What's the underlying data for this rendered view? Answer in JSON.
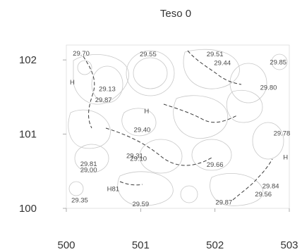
{
  "chart_data": {
    "type": "scatter",
    "title": "Teso 0",
    "xlabel": "",
    "ylabel": "",
    "xlim": [
      500,
      503
    ],
    "ylim": [
      100,
      102.2
    ],
    "x_ticks": [
      "500",
      "501",
      "502",
      "503"
    ],
    "y_ticks": [
      "100",
      "101",
      "102"
    ],
    "grid": false,
    "contours": true,
    "track_color": "#3a3a3a",
    "contour_color": "#c8c8c8",
    "labels": [
      {
        "text": "29.70",
        "x": 500.2,
        "y": 102.06
      },
      {
        "text": "29.55",
        "x": 501.1,
        "y": 102.05
      },
      {
        "text": "29.51",
        "x": 502.0,
        "y": 102.05
      },
      {
        "text": "29.44",
        "x": 502.1,
        "y": 101.93
      },
      {
        "text": "29.85",
        "x": 502.85,
        "y": 101.94
      },
      {
        "text": "H",
        "x": 500.08,
        "y": 101.67
      },
      {
        "text": "29.13",
        "x": 500.55,
        "y": 101.58
      },
      {
        "text": "29.80",
        "x": 502.72,
        "y": 101.6
      },
      {
        "text": "29.87",
        "x": 500.5,
        "y": 101.43
      },
      {
        "text": "H",
        "x": 501.08,
        "y": 101.28
      },
      {
        "text": "29.40",
        "x": 501.02,
        "y": 101.03
      },
      {
        "text": "29.78",
        "x": 502.9,
        "y": 100.98
      },
      {
        "text": "H",
        "x": 502.95,
        "y": 100.66
      },
      {
        "text": "29.31",
        "x": 500.92,
        "y": 100.68
      },
      {
        "text": "29.10",
        "x": 500.97,
        "y": 100.64
      },
      {
        "text": "29.81",
        "x": 500.3,
        "y": 100.57
      },
      {
        "text": "29.00",
        "x": 500.3,
        "y": 100.49
      },
      {
        "text": "29.66",
        "x": 502.0,
        "y": 100.56
      },
      {
        "text": "H81",
        "x": 500.63,
        "y": 100.23
      },
      {
        "text": "29.84",
        "x": 502.75,
        "y": 100.27
      },
      {
        "text": "29.56",
        "x": 502.65,
        "y": 100.16
      },
      {
        "text": "29.35",
        "x": 500.18,
        "y": 100.08
      },
      {
        "text": "29.59",
        "x": 501.0,
        "y": 100.03
      },
      {
        "text": "29.87",
        "x": 502.12,
        "y": 100.05
      }
    ]
  }
}
